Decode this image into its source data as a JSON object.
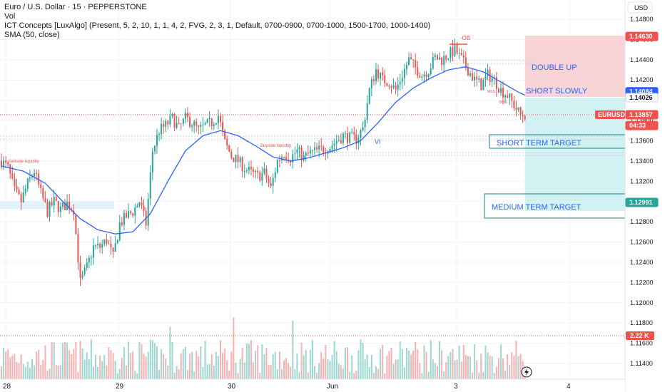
{
  "header": {
    "symbol_title": "Euro / U.S. Dollar · 15 · PEPPERSTONE",
    "indicator_vol": "Vol",
    "indicator_ict": "ICT Concepts [LuxAlgo] (Present, 5, 2, 10, 1, 1, 4, 2, FVG, 2, 3, 1, Default, 0700-0900, 0700-1000, 1500-1700, 1000-1400)",
    "indicator_sma": "SMA (50, close)"
  },
  "currency_label": "USD",
  "colors": {
    "up": "#26a69a",
    "down": "#ef5350",
    "sma": "#2962ff",
    "price_line": "#ef5350",
    "stop_zone": "#f9d4d7",
    "target_zone": "#d2f1f2",
    "annotation_text": "#2962ff",
    "box_border": "#138484",
    "liquidity_zone": "#e0f4f8"
  },
  "price_axis": {
    "ticks": [
      "1.14800",
      "1.14600",
      "1.14400",
      "1.14200",
      "1.14000",
      "1.13800",
      "1.13600",
      "1.13400",
      "1.13200",
      "1.13000",
      "1.12800",
      "1.12600",
      "1.12400",
      "1.12200",
      "1.12000",
      "1.11800",
      "1.11600",
      "1.11400"
    ],
    "labels": [
      {
        "text": "1.14630",
        "price": 1.1463,
        "color": "#ef5350",
        "text_color": "#ffffff"
      },
      {
        "text": "1.14084",
        "price": 1.14084,
        "color": "#2962ff",
        "text_color": "#ffffff"
      },
      {
        "text": "1.14026",
        "price": 1.14026,
        "color": "#ffffff",
        "text_color": "#131722"
      },
      {
        "text": "1.13857",
        "price": 1.13857,
        "color": "#ef5350",
        "text_color": "#ffffff"
      },
      {
        "text": "04:33",
        "price": 1.1375,
        "color": "#ef5350",
        "text_color": "#ffffff"
      },
      {
        "text": "1.12991",
        "price": 1.12991,
        "color": "#26a69a",
        "text_color": "#ffffff"
      }
    ],
    "symbol_tag": "EURUSD",
    "volume_tag": "2.22 K"
  },
  "time_axis": {
    "ticks": [
      "28",
      "29",
      "30",
      "Jun",
      "3",
      "4"
    ]
  },
  "annotations": {
    "double_up": "DOUBLE UP",
    "short_slowly": "SHORT SLOWLY",
    "short_term_target": "SHORT TERM TARGET",
    "medium_term_target": "MEDIUM TERM TARGET",
    "ob": "-OB",
    "vi": "VI",
    "buyside_liquidity": "Buyside liquidity",
    "sellside_liquidity": "Sellside liquidity",
    "mss1": "MSS",
    "mss2": "BOS"
  },
  "chart_data": {
    "type": "candlestick",
    "symbol": "EURUSD",
    "timeframe": "15",
    "ylim": [
      1.1125,
      1.1485
    ],
    "current_price": 1.13857,
    "countdown": "04:33",
    "stop_level": 1.1463,
    "entry_level": 1.14026,
    "sma_level": 1.14084,
    "target_level": 1.12991,
    "volume_last": "2.22 K",
    "x_ticks": [
      "28",
      "29",
      "30",
      "Jun",
      "3",
      "4"
    ],
    "path": [
      [
        0,
        1.134
      ],
      [
        3,
        1.1333
      ],
      [
        6,
        1.131
      ],
      [
        9,
        1.13
      ],
      [
        12,
        1.1318
      ],
      [
        15,
        1.133
      ],
      [
        18,
        1.1308
      ],
      [
        21,
        1.129
      ],
      [
        24,
        1.13
      ],
      [
        27,
        1.1292
      ],
      [
        30,
        1.1298
      ],
      [
        33,
        1.1292
      ],
      [
        36,
        1.122
      ],
      [
        39,
        1.1235
      ],
      [
        42,
        1.1255
      ],
      [
        45,
        1.1255
      ],
      [
        48,
        1.1262
      ],
      [
        51,
        1.1245
      ],
      [
        54,
        1.1278
      ],
      [
        57,
        1.1285
      ],
      [
        60,
        1.129
      ],
      [
        63,
        1.13
      ],
      [
        66,
        1.1278
      ],
      [
        69,
        1.135
      ],
      [
        72,
        1.137
      ],
      [
        75,
        1.1375
      ],
      [
        78,
        1.1382
      ],
      [
        81,
        1.1372
      ],
      [
        84,
        1.1382
      ],
      [
        87,
        1.1378
      ],
      [
        90,
        1.137
      ],
      [
        93,
        1.1375
      ],
      [
        96,
        1.1378
      ],
      [
        99,
        1.1385
      ],
      [
        102,
        1.1358
      ],
      [
        105,
        1.1345
      ],
      [
        108,
        1.134
      ],
      [
        111,
        1.1333
      ],
      [
        114,
        1.1328
      ],
      [
        117,
        1.1325
      ],
      [
        120,
        1.1328
      ],
      [
        123,
        1.1313
      ],
      [
        126,
        1.134
      ],
      [
        129,
        1.1348
      ],
      [
        132,
        1.1343
      ],
      [
        135,
        1.135
      ],
      [
        138,
        1.1343
      ],
      [
        141,
        1.1348
      ],
      [
        144,
        1.135
      ],
      [
        147,
        1.1352
      ],
      [
        150,
        1.1354
      ],
      [
        153,
        1.136
      ],
      [
        156,
        1.1365
      ],
      [
        159,
        1.1363
      ],
      [
        162,
        1.1362
      ],
      [
        165,
        1.1372
      ],
      [
        168,
        1.141
      ],
      [
        171,
        1.143
      ],
      [
        174,
        1.142
      ],
      [
        177,
        1.1418
      ],
      [
        180,
        1.141
      ],
      [
        183,
        1.1425
      ],
      [
        186,
        1.144
      ],
      [
        189,
        1.1432
      ],
      [
        192,
        1.1425
      ],
      [
        195,
        1.143
      ],
      [
        198,
        1.1442
      ],
      [
        201,
        1.144
      ],
      [
        204,
        1.1445
      ],
      [
        207,
        1.145
      ],
      [
        210,
        1.144
      ],
      [
        213,
        1.143
      ],
      [
        216,
        1.142
      ],
      [
        219,
        1.1415
      ],
      [
        222,
        1.1425
      ],
      [
        225,
        1.142
      ],
      [
        228,
        1.141
      ],
      [
        231,
        1.1405
      ],
      [
        234,
        1.1395
      ],
      [
        237,
        1.1385
      ],
      [
        239,
        1.1386
      ]
    ],
    "sma_path": [
      [
        0,
        1.1335
      ],
      [
        10,
        1.133
      ],
      [
        20,
        1.1318
      ],
      [
        28,
        1.13
      ],
      [
        36,
        1.1283
      ],
      [
        44,
        1.1272
      ],
      [
        52,
        1.1268
      ],
      [
        60,
        1.127
      ],
      [
        68,
        1.1288
      ],
      [
        76,
        1.132
      ],
      [
        84,
        1.135
      ],
      [
        92,
        1.1365
      ],
      [
        100,
        1.137
      ],
      [
        108,
        1.1365
      ],
      [
        116,
        1.1355
      ],
      [
        124,
        1.1344
      ],
      [
        132,
        1.134
      ],
      [
        140,
        1.1343
      ],
      [
        148,
        1.1348
      ],
      [
        156,
        1.1353
      ],
      [
        164,
        1.136
      ],
      [
        172,
        1.1378
      ],
      [
        180,
        1.1398
      ],
      [
        188,
        1.1412
      ],
      [
        196,
        1.1422
      ],
      [
        204,
        1.143
      ],
      [
        212,
        1.1433
      ],
      [
        220,
        1.1428
      ],
      [
        228,
        1.1418
      ],
      [
        236,
        1.1408
      ],
      [
        239,
        1.1405
      ]
    ]
  }
}
